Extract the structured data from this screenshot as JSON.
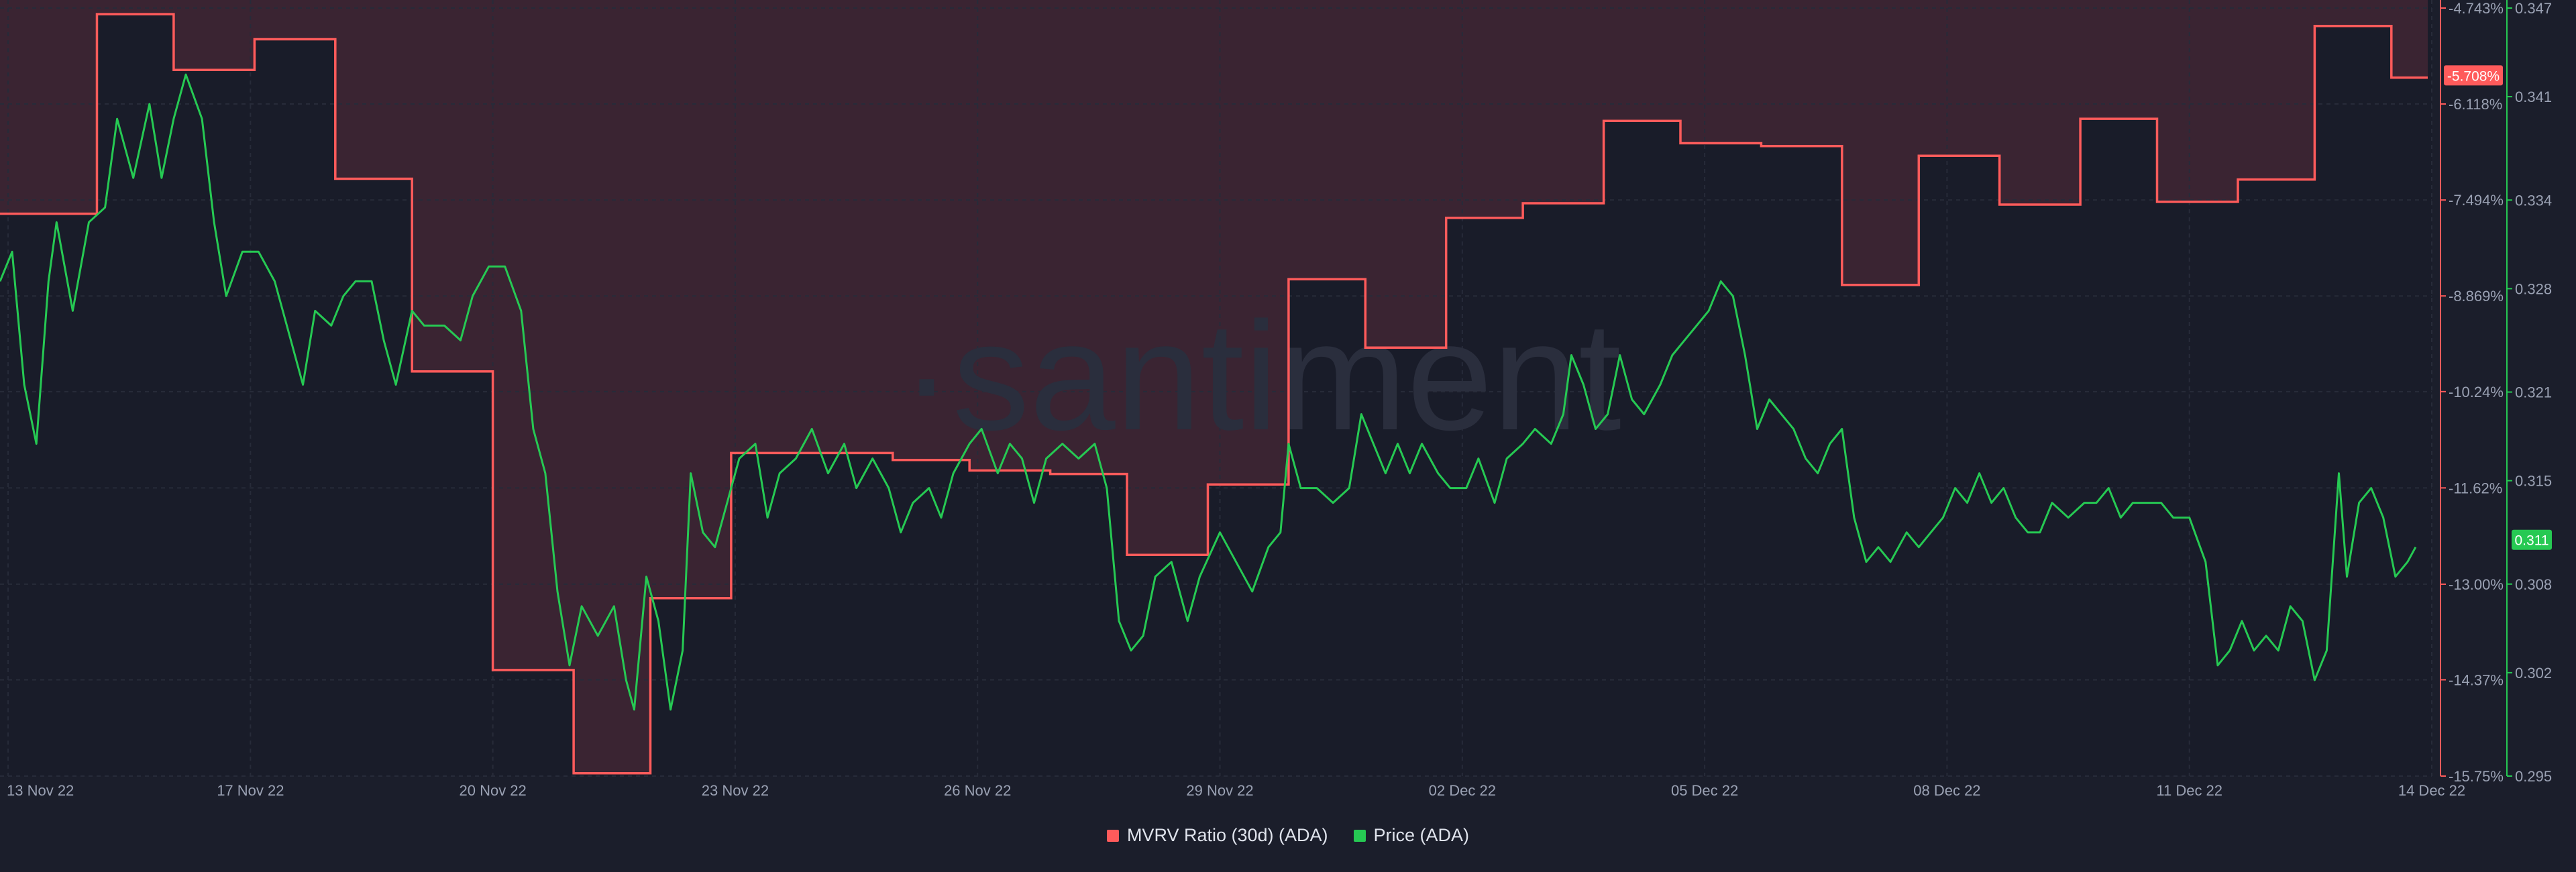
{
  "watermark": "·santiment",
  "colors": {
    "background": "#1b1e2b",
    "plot_background": "#191c29",
    "mvrv_line": "#ff5b5b",
    "mvrv_fill": "#3e2633",
    "price_line": "#26c953",
    "grid": "#272b39",
    "axis_text": "#9aa1b3"
  },
  "chart_data": {
    "type": "line",
    "title": "",
    "x_tick_labels": [
      "13 Nov 22",
      "17 Nov 22",
      "20 Nov 22",
      "23 Nov 22",
      "26 Nov 22",
      "29 Nov 22",
      "02 Dec 22",
      "05 Dec 22",
      "08 Dec 22",
      "11 Dec 22",
      "14 Dec 22"
    ],
    "x_tick_days": [
      0,
      3,
      6,
      9,
      12,
      15,
      18,
      21,
      24,
      27,
      30
    ],
    "x_range_days": [
      -0.1,
      30.0
    ],
    "legend": "bottom-center",
    "grid": true,
    "y_left": {
      "label": "",
      "range": [
        -15.75,
        -4.743
      ],
      "tick_labels": [
        "-4.743%",
        "-6.118%",
        "-7.494%",
        "-8.869%",
        "-10.24%",
        "-11.62%",
        "-13.00%",
        "-14.37%",
        "-15.75%"
      ],
      "ticks": [
        -4.743,
        -6.118,
        -7.494,
        -8.869,
        -10.24,
        -11.62,
        -13.0,
        -14.37,
        -15.75
      ],
      "current_label": "-5.708%",
      "current_value": -5.708
    },
    "y_right": {
      "label": "",
      "range": [
        0.295,
        0.347
      ],
      "tick_labels": [
        "0.347",
        "0.341",
        "0.334",
        "0.328",
        "0.321",
        "0.315",
        "0.308",
        "0.302",
        "0.295"
      ],
      "ticks": [
        0.347,
        0.341,
        0.334,
        0.328,
        0.321,
        0.315,
        0.308,
        0.302,
        0.295
      ],
      "current_label": "0.311",
      "current_value": 0.311
    },
    "series": [
      {
        "name": "MVRV Ratio (30d) (ADA)",
        "axis": "left",
        "step": true,
        "points": [
          [
            -0.1,
            -7.69
          ],
          [
            1.1,
            -7.69
          ],
          [
            1.1,
            -4.83
          ],
          [
            2.05,
            -4.83
          ],
          [
            2.05,
            -5.63
          ],
          [
            3.05,
            -5.63
          ],
          [
            3.05,
            -5.19
          ],
          [
            4.05,
            -5.19
          ],
          [
            4.05,
            -7.19
          ],
          [
            5.0,
            -7.19
          ],
          [
            5.0,
            -9.95
          ],
          [
            6.0,
            -9.95
          ],
          [
            6.0,
            -14.23
          ],
          [
            7.0,
            -14.23
          ],
          [
            7.0,
            -15.71
          ],
          [
            7.95,
            -15.71
          ],
          [
            7.95,
            -13.2
          ],
          [
            8.95,
            -13.2
          ],
          [
            8.95,
            -11.12
          ],
          [
            10.95,
            -11.12
          ],
          [
            10.95,
            -11.22
          ],
          [
            11.9,
            -11.22
          ],
          [
            11.9,
            -11.37
          ],
          [
            12.9,
            -11.37
          ],
          [
            12.9,
            -11.42
          ],
          [
            13.85,
            -11.42
          ],
          [
            13.85,
            -12.58
          ],
          [
            14.85,
            -12.58
          ],
          [
            14.85,
            -11.57
          ],
          [
            15.85,
            -11.57
          ],
          [
            15.85,
            -8.63
          ],
          [
            16.8,
            -8.63
          ],
          [
            16.8,
            -9.61
          ],
          [
            17.8,
            -9.61
          ],
          [
            17.8,
            -7.75
          ],
          [
            18.75,
            -7.75
          ],
          [
            18.75,
            -7.54
          ],
          [
            19.75,
            -7.54
          ],
          [
            19.75,
            -6.36
          ],
          [
            20.7,
            -6.36
          ],
          [
            20.7,
            -6.68
          ],
          [
            21.7,
            -6.68
          ],
          [
            21.7,
            -6.72
          ],
          [
            22.7,
            -6.72
          ],
          [
            22.7,
            -8.71
          ],
          [
            23.65,
            -8.71
          ],
          [
            23.65,
            -6.86
          ],
          [
            24.65,
            -6.86
          ],
          [
            24.65,
            -7.56
          ],
          [
            25.65,
            -7.56
          ],
          [
            25.65,
            -6.33
          ],
          [
            26.6,
            -6.33
          ],
          [
            26.6,
            -7.52
          ],
          [
            27.6,
            -7.52
          ],
          [
            27.6,
            -7.2
          ],
          [
            28.55,
            -7.2
          ],
          [
            28.55,
            -5.0
          ],
          [
            29.5,
            -5.0
          ],
          [
            29.5,
            -5.74
          ],
          [
            29.95,
            -5.74
          ]
        ]
      },
      {
        "name": "Price (ADA)",
        "axis": "right",
        "step": false,
        "points": [
          [
            -0.1,
            0.3285
          ],
          [
            0.05,
            0.3305
          ],
          [
            0.2,
            0.3215
          ],
          [
            0.35,
            0.3175
          ],
          [
            0.5,
            0.3285
          ],
          [
            0.6,
            0.3325
          ],
          [
            0.8,
            0.3265
          ],
          [
            1.0,
            0.3325
          ],
          [
            1.2,
            0.3335
          ],
          [
            1.35,
            0.3395
          ],
          [
            1.55,
            0.3355
          ],
          [
            1.75,
            0.3405
          ],
          [
            1.9,
            0.3355
          ],
          [
            2.05,
            0.3395
          ],
          [
            2.2,
            0.3425
          ],
          [
            2.4,
            0.3395
          ],
          [
            2.55,
            0.3325
          ],
          [
            2.7,
            0.3275
          ],
          [
            2.9,
            0.3305
          ],
          [
            3.1,
            0.3305
          ],
          [
            3.3,
            0.3285
          ],
          [
            3.5,
            0.3245
          ],
          [
            3.65,
            0.3215
          ],
          [
            3.8,
            0.3265
          ],
          [
            4.0,
            0.3255
          ],
          [
            4.15,
            0.3275
          ],
          [
            4.3,
            0.3285
          ],
          [
            4.5,
            0.3285
          ],
          [
            4.65,
            0.3245
          ],
          [
            4.8,
            0.3215
          ],
          [
            5.0,
            0.3265
          ],
          [
            5.15,
            0.3255
          ],
          [
            5.4,
            0.3255
          ],
          [
            5.6,
            0.3245
          ],
          [
            5.75,
            0.3275
          ],
          [
            5.95,
            0.3295
          ],
          [
            6.15,
            0.3295
          ],
          [
            6.35,
            0.3265
          ],
          [
            6.5,
            0.3185
          ],
          [
            6.65,
            0.3155
          ],
          [
            6.8,
            0.3075
          ],
          [
            6.95,
            0.3025
          ],
          [
            7.1,
            0.3065
          ],
          [
            7.3,
            0.3045
          ],
          [
            7.5,
            0.3065
          ],
          [
            7.65,
            0.3015
          ],
          [
            7.75,
            0.2995
          ],
          [
            7.9,
            0.3085
          ],
          [
            8.05,
            0.3055
          ],
          [
            8.2,
            0.2995
          ],
          [
            8.35,
            0.3035
          ],
          [
            8.45,
            0.3155
          ],
          [
            8.6,
            0.3115
          ],
          [
            8.75,
            0.3105
          ],
          [
            8.9,
            0.3135
          ],
          [
            9.05,
            0.3165
          ],
          [
            9.25,
            0.3175
          ],
          [
            9.4,
            0.3125
          ],
          [
            9.55,
            0.3155
          ],
          [
            9.75,
            0.3165
          ],
          [
            9.95,
            0.3185
          ],
          [
            10.15,
            0.3155
          ],
          [
            10.35,
            0.3175
          ],
          [
            10.5,
            0.3145
          ],
          [
            10.7,
            0.3165
          ],
          [
            10.9,
            0.3145
          ],
          [
            11.05,
            0.3115
          ],
          [
            11.2,
            0.3135
          ],
          [
            11.4,
            0.3145
          ],
          [
            11.55,
            0.3125
          ],
          [
            11.7,
            0.3155
          ],
          [
            11.9,
            0.3175
          ],
          [
            12.05,
            0.3185
          ],
          [
            12.25,
            0.3155
          ],
          [
            12.4,
            0.3175
          ],
          [
            12.55,
            0.3165
          ],
          [
            12.7,
            0.3135
          ],
          [
            12.85,
            0.3165
          ],
          [
            13.05,
            0.3175
          ],
          [
            13.25,
            0.3165
          ],
          [
            13.45,
            0.3175
          ],
          [
            13.6,
            0.3145
          ],
          [
            13.75,
            0.3055
          ],
          [
            13.9,
            0.3035
          ],
          [
            14.05,
            0.3045
          ],
          [
            14.2,
            0.3085
          ],
          [
            14.4,
            0.3095
          ],
          [
            14.6,
            0.3055
          ],
          [
            14.75,
            0.3085
          ],
          [
            15.0,
            0.3115
          ],
          [
            15.2,
            0.3095
          ],
          [
            15.4,
            0.3075
          ],
          [
            15.6,
            0.3105
          ],
          [
            15.75,
            0.3115
          ],
          [
            15.85,
            0.3175
          ],
          [
            16.0,
            0.3145
          ],
          [
            16.2,
            0.3145
          ],
          [
            16.4,
            0.3135
          ],
          [
            16.6,
            0.3145
          ],
          [
            16.75,
            0.3195
          ],
          [
            16.9,
            0.3175
          ],
          [
            17.05,
            0.3155
          ],
          [
            17.2,
            0.3175
          ],
          [
            17.35,
            0.3155
          ],
          [
            17.5,
            0.3175
          ],
          [
            17.7,
            0.3155
          ],
          [
            17.85,
            0.3145
          ],
          [
            18.05,
            0.3145
          ],
          [
            18.2,
            0.3165
          ],
          [
            18.4,
            0.3135
          ],
          [
            18.55,
            0.3165
          ],
          [
            18.75,
            0.3175
          ],
          [
            18.9,
            0.3185
          ],
          [
            19.1,
            0.3175
          ],
          [
            19.25,
            0.3195
          ],
          [
            19.35,
            0.3235
          ],
          [
            19.5,
            0.3215
          ],
          [
            19.65,
            0.3185
          ],
          [
            19.8,
            0.3195
          ],
          [
            19.95,
            0.3235
          ],
          [
            20.1,
            0.3205
          ],
          [
            20.25,
            0.3195
          ],
          [
            20.45,
            0.3215
          ],
          [
            20.6,
            0.3235
          ],
          [
            20.75,
            0.3245
          ],
          [
            20.9,
            0.3255
          ],
          [
            21.05,
            0.3265
          ],
          [
            21.2,
            0.3285
          ],
          [
            21.35,
            0.3275
          ],
          [
            21.5,
            0.3235
          ],
          [
            21.65,
            0.3185
          ],
          [
            21.8,
            0.3205
          ],
          [
            21.95,
            0.3195
          ],
          [
            22.1,
            0.3185
          ],
          [
            22.25,
            0.3165
          ],
          [
            22.4,
            0.3155
          ],
          [
            22.55,
            0.3175
          ],
          [
            22.7,
            0.3185
          ],
          [
            22.85,
            0.3125
          ],
          [
            23.0,
            0.3095
          ],
          [
            23.15,
            0.3105
          ],
          [
            23.3,
            0.3095
          ],
          [
            23.5,
            0.3115
          ],
          [
            23.65,
            0.3105
          ],
          [
            23.8,
            0.3115
          ],
          [
            23.95,
            0.3125
          ],
          [
            24.1,
            0.3145
          ],
          [
            24.25,
            0.3135
          ],
          [
            24.4,
            0.3155
          ],
          [
            24.55,
            0.3135
          ],
          [
            24.7,
            0.3145
          ],
          [
            24.85,
            0.3125
          ],
          [
            25.0,
            0.3115
          ],
          [
            25.15,
            0.3115
          ],
          [
            25.3,
            0.3135
          ],
          [
            25.5,
            0.3125
          ],
          [
            25.7,
            0.3135
          ],
          [
            25.85,
            0.3135
          ],
          [
            26.0,
            0.3145
          ],
          [
            26.15,
            0.3125
          ],
          [
            26.3,
            0.3135
          ],
          [
            26.5,
            0.3135
          ],
          [
            26.65,
            0.3135
          ],
          [
            26.8,
            0.3125
          ],
          [
            27.0,
            0.3125
          ],
          [
            27.2,
            0.3095
          ],
          [
            27.35,
            0.3025
          ],
          [
            27.5,
            0.3035
          ],
          [
            27.65,
            0.3055
          ],
          [
            27.8,
            0.3035
          ],
          [
            27.95,
            0.3045
          ],
          [
            28.1,
            0.3035
          ],
          [
            28.25,
            0.3065
          ],
          [
            28.4,
            0.3055
          ],
          [
            28.55,
            0.3015
          ],
          [
            28.7,
            0.3035
          ],
          [
            28.85,
            0.3155
          ],
          [
            28.95,
            0.3085
          ],
          [
            29.1,
            0.3135
          ],
          [
            29.25,
            0.3145
          ],
          [
            29.4,
            0.3125
          ],
          [
            29.55,
            0.3085
          ],
          [
            29.7,
            0.3095
          ],
          [
            29.8,
            0.3105
          ]
        ]
      }
    ]
  }
}
